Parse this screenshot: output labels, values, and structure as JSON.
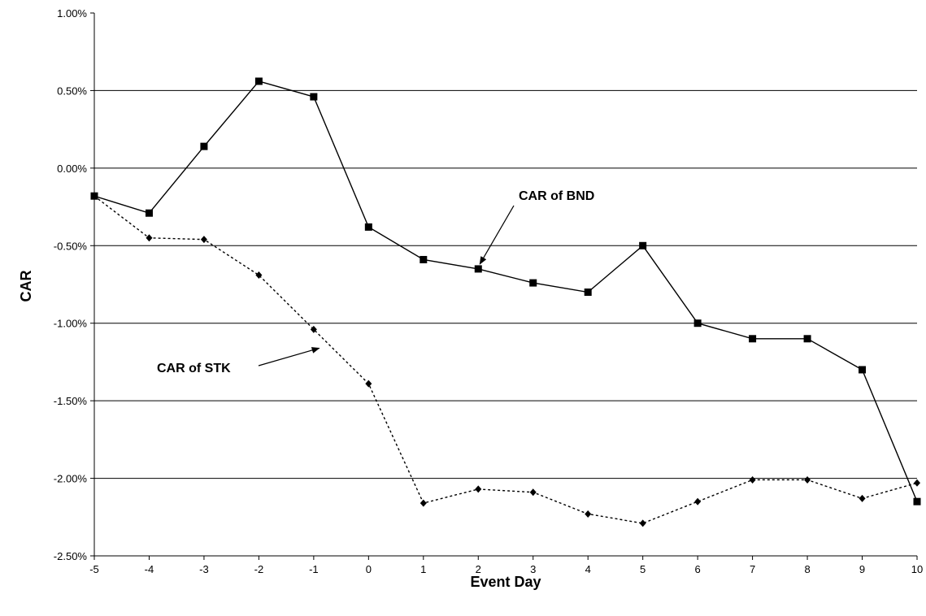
{
  "chart_data": {
    "type": "line",
    "xlabel": "Event Day",
    "ylabel": "CAR",
    "x": [
      -5,
      -4,
      -3,
      -2,
      -1,
      0,
      1,
      2,
      3,
      4,
      5,
      6,
      7,
      8,
      9,
      10
    ],
    "xlim": [
      -5,
      10
    ],
    "ylim": [
      -2.5,
      1.0
    ],
    "ytick_values": [
      1.0,
      0.5,
      0.0,
      -0.5,
      -1.0,
      -1.5,
      -2.0,
      -2.5
    ],
    "ytick_labels": [
      "1.00%",
      "0.50%",
      "0.00%",
      "-0.50%",
      "-1.00%",
      "-1.50%",
      "-2.00%",
      "-2.50%"
    ],
    "xtick_labels": [
      "-5",
      "-4",
      "-3",
      "-2",
      "-1",
      "0",
      "1",
      "2",
      "3",
      "4",
      "5",
      "6",
      "7",
      "8",
      "9",
      "10"
    ],
    "grid": "horizontal",
    "legend": "none",
    "series": [
      {
        "values": [
          -0.18,
          -0.29,
          0.14,
          0.56,
          0.46,
          -0.38,
          -0.59,
          -0.65,
          -0.74,
          -0.8,
          -0.5,
          -1.0,
          -1.1,
          -1.1,
          -1.3,
          -2.15
        ],
        "line": "solid",
        "marker": "square",
        "color": "#000000"
      },
      {
        "values": [
          -0.18,
          -0.45,
          -0.46,
          -0.69,
          -1.04,
          -1.39,
          -2.16,
          -2.07,
          -2.09,
          -2.23,
          -2.29,
          -2.15,
          -2.01,
          -2.01,
          -2.13,
          -2.03
        ],
        "line": "dotted",
        "marker": "diamond",
        "color": "#000000"
      }
    ],
    "annotations": [
      {
        "text": "CAR of BND",
        "target_x": 2,
        "target_y": -0.65
      },
      {
        "text": "CAR of STK",
        "target_x": -0.9,
        "target_y": -1.14
      }
    ]
  }
}
